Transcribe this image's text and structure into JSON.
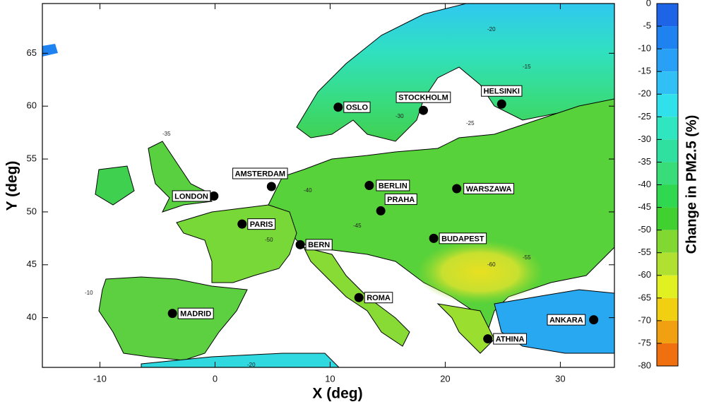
{
  "map": {
    "x_label": "X (deg)",
    "y_label": "Y (deg)",
    "xlim": [
      -15,
      34.7
    ],
    "ylim": [
      35.3,
      69.7
    ],
    "xticks": [
      -10,
      0,
      10,
      20,
      30
    ],
    "yticks": [
      40,
      45,
      50,
      55,
      60,
      65
    ],
    "cities": [
      {
        "name": "LONDON",
        "lon": -0.1,
        "lat": 51.5
      },
      {
        "name": "AMSTERDAM",
        "lon": 4.9,
        "lat": 52.4
      },
      {
        "name": "PARIS",
        "lon": 2.35,
        "lat": 48.85
      },
      {
        "name": "BERLIN",
        "lon": 13.4,
        "lat": 52.5
      },
      {
        "name": "PRAHA",
        "lon": 14.4,
        "lat": 50.1
      },
      {
        "name": "WARSZAWA",
        "lon": 21.0,
        "lat": 52.2
      },
      {
        "name": "BERN",
        "lon": 7.4,
        "lat": 46.9
      },
      {
        "name": "BUDAPEST",
        "lon": 19.0,
        "lat": 47.5
      },
      {
        "name": "ROMA",
        "lon": 12.5,
        "lat": 41.9
      },
      {
        "name": "MADRID",
        "lon": -3.7,
        "lat": 40.4
      },
      {
        "name": "OSLO",
        "lon": 10.7,
        "lat": 59.9
      },
      {
        "name": "STOCKHOLM",
        "lon": 18.1,
        "lat": 59.6
      },
      {
        "name": "HELSINKI",
        "lon": 24.9,
        "lat": 60.2
      },
      {
        "name": "ANKARA",
        "lon": 32.9,
        "lat": 39.8
      },
      {
        "name": "ATHINA",
        "lon": 23.7,
        "lat": 38.0
      }
    ],
    "contour_labels": [
      "-15",
      "-20",
      "-25",
      "-30",
      "-35",
      "-40",
      "-45",
      "-50",
      "-55",
      "-60",
      "-10",
      "-20"
    ]
  },
  "colorbar": {
    "label": "Change in PM2.5 (%)",
    "lim": [
      0,
      -80
    ],
    "ticks": [
      0,
      -5,
      -10,
      -15,
      -20,
      -25,
      -30,
      -35,
      -40,
      -45,
      -50,
      -55,
      -60,
      -65,
      -70,
      -75,
      -80
    ],
    "colors": [
      "#1e64e6",
      "#1e82f0",
      "#28a0f5",
      "#30c0f5",
      "#30e0ea",
      "#30e6c0",
      "#30e0a0",
      "#38dc78",
      "#30d850",
      "#40d030",
      "#80d830",
      "#b0e030",
      "#e0f020",
      "#f0d010",
      "#f0a010",
      "#f07010",
      "#f03c10"
    ]
  }
}
